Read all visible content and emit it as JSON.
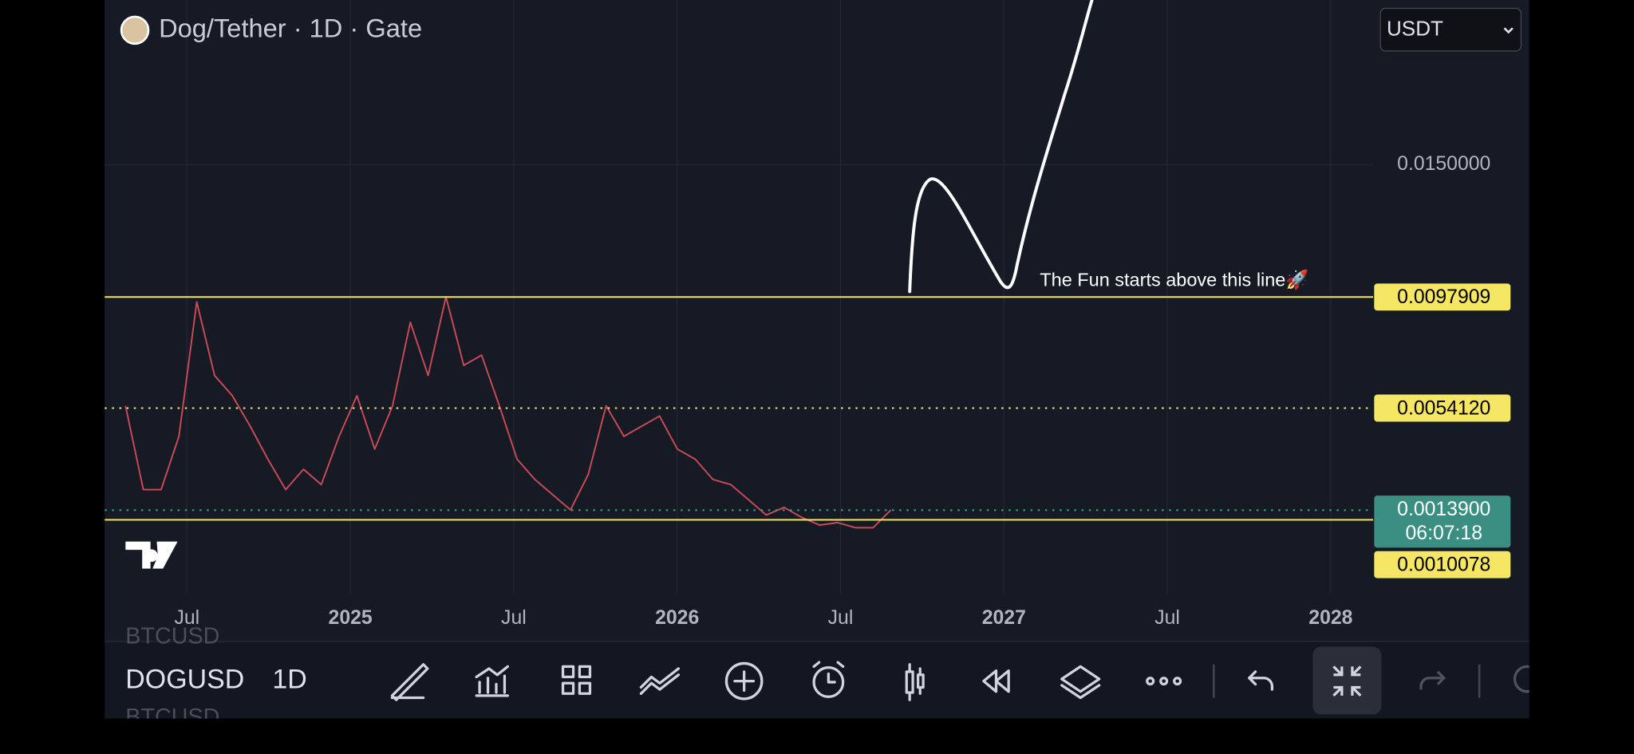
{
  "header": {
    "title": "Dog/Tether · 1D · Gate",
    "currency": "USDT"
  },
  "chart": {
    "ylim": [
      -0.0019,
      0.0215
    ],
    "price_ticks": [
      {
        "value": 0.015,
        "label": "0.0150000"
      }
    ],
    "time_labels": [
      "Jul",
      "2025",
      "Jul",
      "2026",
      "Jul",
      "2027",
      "Jul",
      "2028"
    ],
    "levels": [
      {
        "value": 0.0097909,
        "label": "0.0097909",
        "style": "solid"
      },
      {
        "value": 0.005412,
        "label": "0.0054120",
        "style": "dotted"
      },
      {
        "value": 0.0010078,
        "label": "0.0010078",
        "style": "solid"
      }
    ],
    "last_price": {
      "value": 0.00139,
      "label": "0.0013900",
      "countdown": "06:07:18"
    },
    "annotation": "The Fun starts above this line🚀",
    "price_series": [
      0.0055,
      0.0022,
      0.0022,
      0.0043,
      0.0096,
      0.0067,
      0.0059,
      0.0047,
      0.0034,
      0.0022,
      0.003,
      0.0024,
      0.0043,
      0.0059,
      0.0038,
      0.0055,
      0.0088,
      0.0067,
      0.0098,
      0.0071,
      0.0075,
      0.0055,
      0.0034,
      0.0026,
      0.002,
      0.0014,
      0.0028,
      0.0055,
      0.0043,
      0.0047,
      0.0051,
      0.0038,
      0.0034,
      0.0026,
      0.0024,
      0.0018,
      0.0012,
      0.0015,
      0.0011,
      0.0008,
      0.0009,
      0.0007,
      0.0007,
      0.0014
    ]
  },
  "toolbar": {
    "symbol": "DOGUSD",
    "interval": "1D",
    "ghost_symbol": "BTCUSD"
  }
}
